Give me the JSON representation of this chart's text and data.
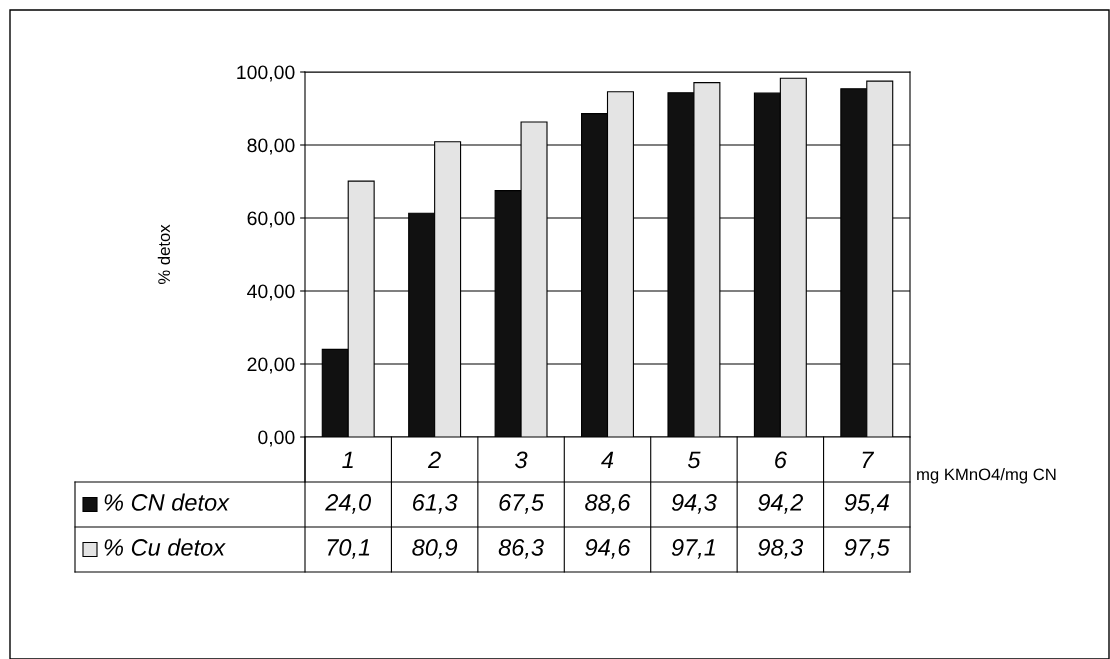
{
  "chart_data": {
    "type": "bar",
    "xlabel": "mg KMnO4/mg CN",
    "ylabel": "% detox",
    "categories": [
      "1",
      "2",
      "3",
      "4",
      "5",
      "6",
      "7"
    ],
    "series": [
      {
        "name": "% CN detox",
        "color": "#111111",
        "values": [
          24.0,
          61.3,
          67.5,
          88.6,
          94.3,
          94.2,
          95.4
        ],
        "value_labels": [
          "24,0",
          "61,3",
          "67,5",
          "88,6",
          "94,3",
          "94,2",
          "95,4"
        ]
      },
      {
        "name": "% Cu detox",
        "color": "#e4e4e4",
        "values": [
          70.1,
          80.9,
          86.3,
          94.6,
          97.1,
          98.3,
          97.5
        ],
        "value_labels": [
          "70,1",
          "80,9",
          "86,3",
          "94,6",
          "97,1",
          "98,3",
          "97,5"
        ]
      }
    ],
    "ylim": [
      0,
      100
    ],
    "yticks": [
      {
        "value": 0,
        "label": "0,00"
      },
      {
        "value": 20,
        "label": "20,00"
      },
      {
        "value": 40,
        "label": "40,00"
      },
      {
        "value": 60,
        "label": "60,00"
      },
      {
        "value": 80,
        "label": "80,00"
      },
      {
        "value": 100,
        "label": "100,00"
      }
    ],
    "grid": "y",
    "legend": "bottom left"
  }
}
